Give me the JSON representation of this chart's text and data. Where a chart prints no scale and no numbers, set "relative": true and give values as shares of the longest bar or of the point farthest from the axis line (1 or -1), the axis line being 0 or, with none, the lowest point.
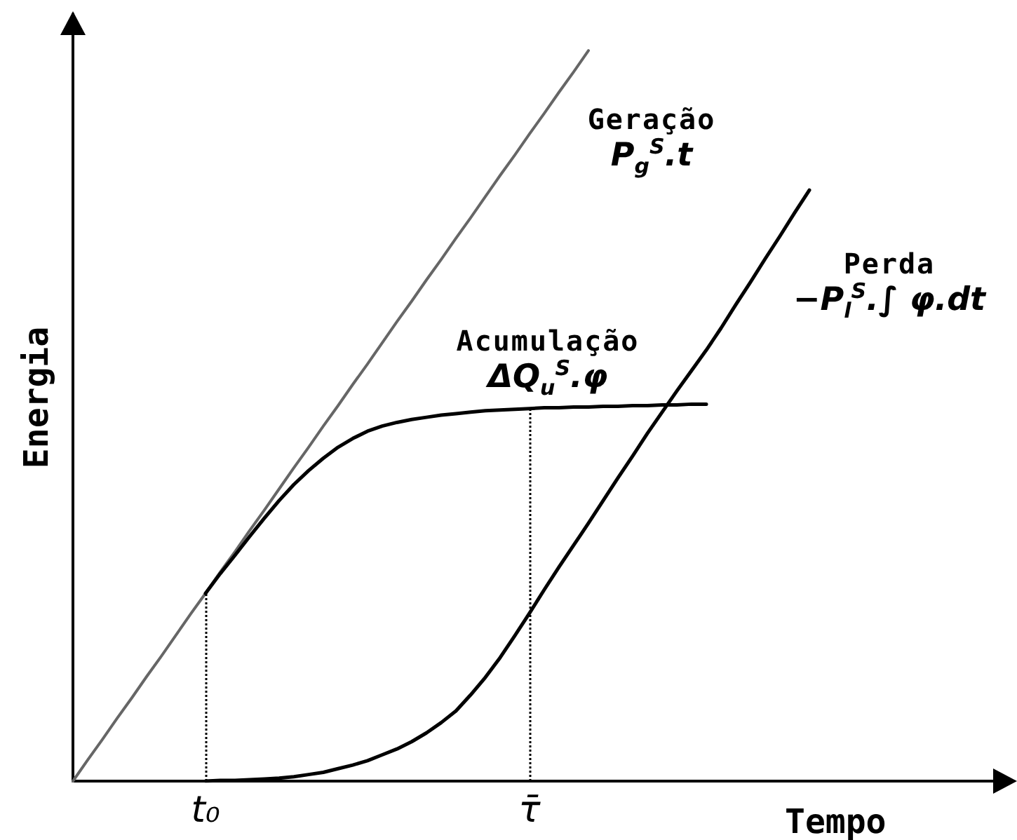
{
  "chart_data": {
    "type": "line",
    "relative": true,
    "xlabel": "Tempo",
    "ylabel": "Energia",
    "categories": [
      null,
      null,
      null,
      null,
      null,
      null,
      null,
      null,
      null,
      "t₀",
      null,
      null,
      null,
      null,
      null,
      null,
      null,
      null,
      null,
      null,
      null,
      null,
      null,
      null,
      null,
      null,
      null,
      null,
      null,
      null,
      null,
      "τ̄",
      null,
      null,
      null,
      null,
      null,
      null,
      null,
      null,
      null,
      null,
      null,
      null,
      null,
      null,
      null,
      null,
      null,
      null,
      null,
      null,
      null,
      null,
      null,
      null,
      null,
      null,
      null,
      null,
      null,
      null,
      null,
      null
    ],
    "series": [
      {
        "name": "Geração",
        "color": "#666666",
        "values": [
          0,
          0.029,
          0.057,
          0.086,
          0.114,
          0.143,
          0.171,
          0.2,
          0.229,
          0.257,
          0.286,
          0.314,
          0.343,
          0.371,
          0.4,
          0.429,
          0.457,
          0.486,
          0.514,
          0.543,
          0.571,
          0.6,
          0.629,
          0.657,
          0.686,
          0.714,
          0.743,
          0.771,
          0.8,
          0.829,
          0.857,
          0.886,
          0.914,
          0.943,
          0.971,
          1,
          null,
          null,
          null,
          null,
          null,
          null,
          null,
          null,
          null,
          null,
          null,
          null,
          null,
          null,
          null,
          null,
          null,
          null,
          null,
          null,
          null,
          null,
          null,
          null,
          null,
          null,
          null,
          null
        ]
      },
      {
        "name": "Acumulação",
        "color": "#000000",
        "values": [
          null,
          null,
          null,
          null,
          null,
          null,
          null,
          null,
          null,
          0.257,
          0.284,
          0.309,
          0.335,
          0.36,
          0.384,
          0.406,
          0.425,
          0.442,
          0.457,
          0.469,
          0.479,
          0.486,
          0.491,
          0.495,
          0.498,
          0.501,
          0.503,
          0.505,
          0.507,
          0.508,
          0.509,
          0.51,
          0.511,
          0.511,
          0.512,
          0.512,
          0.513,
          0.513,
          0.514,
          0.514,
          0.515,
          0.515,
          0.516,
          0.516,
          null,
          null,
          null,
          null,
          null,
          null,
          null,
          null,
          null,
          null,
          null,
          null,
          null,
          null,
          null,
          null,
          null,
          null,
          null,
          null
        ]
      },
      {
        "name": "Perda",
        "color": "#000000",
        "values": [
          null,
          null,
          null,
          null,
          null,
          null,
          null,
          null,
          null,
          0,
          0.001,
          0.001,
          0.002,
          0.003,
          0.004,
          0.006,
          0.009,
          0.012,
          0.017,
          0.022,
          0.028,
          0.036,
          0.044,
          0.054,
          0.066,
          0.08,
          0.096,
          0.118,
          0.142,
          0.169,
          0.199,
          0.23,
          0.262,
          0.293,
          0.323,
          0.353,
          0.384,
          0.415,
          0.445,
          0.476,
          0.505,
          0.534,
          0.562,
          0.59,
          0.62,
          0.652,
          0.683,
          0.715,
          0.746,
          0.778,
          0.809,
          null,
          null,
          null,
          null,
          null,
          null,
          null,
          null,
          null,
          null,
          null,
          null,
          null
        ]
      }
    ],
    "annotations": [
      "P$_{g}$$^{S}$.t",
      "ΔQ$_{u}$$^{S}$.φ",
      "−P$_{l}$$^{S}$.∫ φ.dt"
    ],
    "ref_lines": [
      {
        "axis": "x",
        "value": "t₀",
        "color": "#000000",
        "line_style": "dotted"
      },
      {
        "axis": "x",
        "value": "τ̄",
        "color": "#000000",
        "line_style": "dotted"
      }
    ],
    "marker": "none",
    "line_style": "solid",
    "tick_labels": "x"
  }
}
